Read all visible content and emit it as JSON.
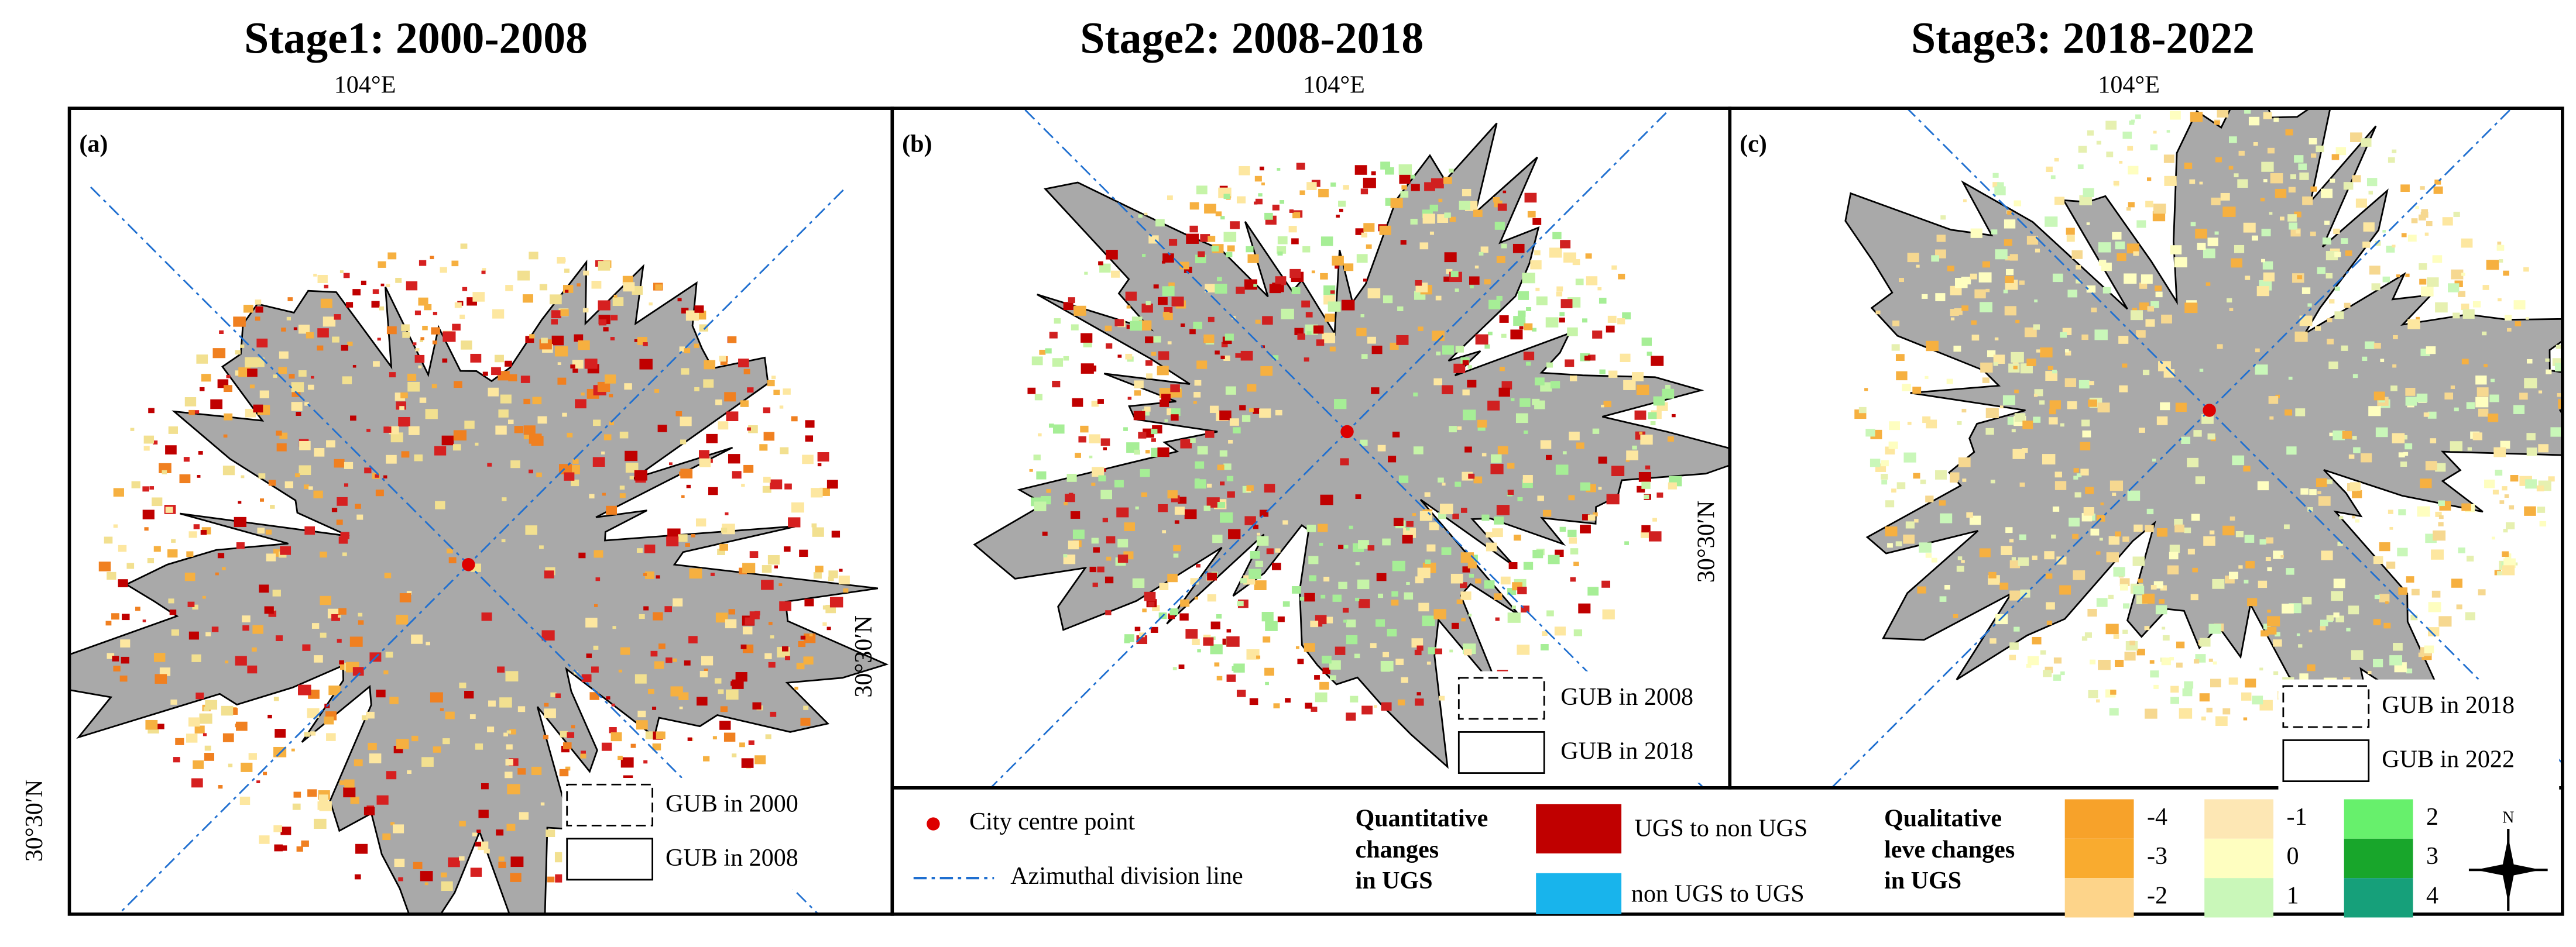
{
  "panels": [
    {
      "title": "Stage1: 2000-2008",
      "label": "(a)",
      "lon_label": "104°E",
      "lat_label": "30°30′N",
      "legend": [
        "GUB in 2000",
        "GUB in 2008"
      ]
    },
    {
      "title": "Stage2: 2008-2018",
      "label": "(b)",
      "lon_label": "104°E",
      "lat_label": "30°30′N",
      "legend": [
        "GUB in 2008",
        "GUB in 2018"
      ]
    },
    {
      "title": "Stage3: 2018-2022",
      "label": "(c)",
      "lon_label": "104°E",
      "lat_label": "30°30′N",
      "legend": [
        "GUB in 2018",
        "GUB in 2022"
      ]
    }
  ],
  "legend": {
    "symbols": [
      "City centre point",
      "Azimuthal division line"
    ],
    "quantitative": {
      "title": [
        "Quantitative",
        "changes",
        "in UGS"
      ],
      "items": [
        "UGS to non UGS",
        "non UGS to UGS"
      ]
    },
    "qualitative": {
      "title": [
        "Qualitative",
        "leve changes",
        "in UGS"
      ],
      "items": [
        "-4",
        "-3",
        "-2",
        "-1",
        "0",
        "1",
        "2",
        "3",
        "4"
      ]
    }
  }
}
